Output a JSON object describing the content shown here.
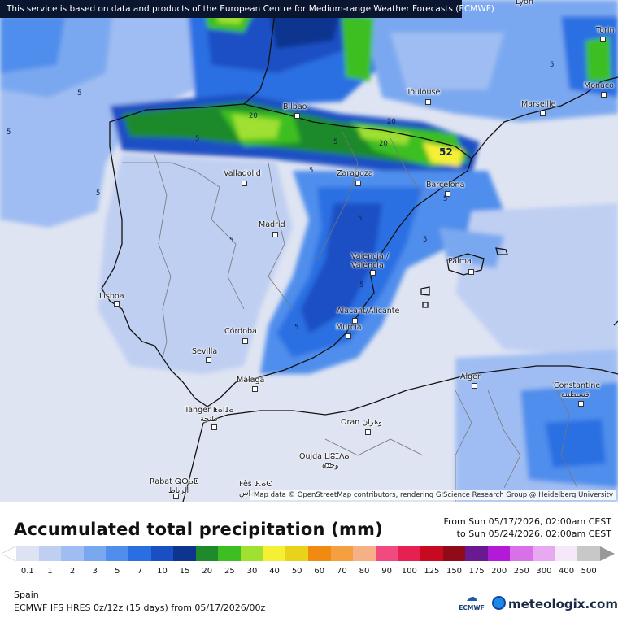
{
  "banner": {
    "text": "This service is based on data and products of the European Centre for Medium-range Weather Forecasts (ECMWF)"
  },
  "map": {
    "attribution": "Map data © OpenStreetMap contributors, rendering GIScience Research Group @ Heidelberg University",
    "cities": [
      {
        "name": "Lyon",
        "key": "lyon"
      },
      {
        "name": "Torin",
        "key": "torino"
      },
      {
        "name": "Monaco",
        "key": "monaco"
      },
      {
        "name": "Toulouse",
        "key": "toulouse"
      },
      {
        "name": "Marseille",
        "key": "marseille"
      },
      {
        "name": "Bilbao",
        "key": "bilbao"
      },
      {
        "name": "Valladolid",
        "key": "valladolid"
      },
      {
        "name": "Zaragoza",
        "key": "zaragoza"
      },
      {
        "name": "Barcelona",
        "key": "barcelona"
      },
      {
        "name": "Madrid",
        "key": "madrid"
      },
      {
        "name": "Valencia / València",
        "key": "valencia"
      },
      {
        "name": "Palma",
        "key": "palma"
      },
      {
        "name": "Lisboa",
        "key": "lisboa"
      },
      {
        "name": "Alacant/Alicante",
        "key": "alicante"
      },
      {
        "name": "Córdoba",
        "key": "cordoba"
      },
      {
        "name": "Murcia",
        "key": "murcia"
      },
      {
        "name": "Sevilla",
        "key": "sevilla"
      },
      {
        "name": "Málaga",
        "key": "malaga"
      },
      {
        "name": "Alger",
        "key": "alger"
      },
      {
        "name": "Constantine",
        "key": "constantine"
      },
      {
        "name": "قسنطينة",
        "key": "constantine_ar"
      },
      {
        "name": "Tanger ⵟⴰⵏⵊⴰ",
        "key": "tanger"
      },
      {
        "name": "طنجة",
        "key": "tanger_ar"
      },
      {
        "name": "Oran وهران",
        "key": "oran"
      },
      {
        "name": "Oujda ⵡⵓⵊⴷⴰ",
        "key": "oujda"
      },
      {
        "name": "وجدة",
        "key": "oujda_ar"
      },
      {
        "name": "Rabat ⵕⴱⴰⵟ",
        "key": "rabat"
      },
      {
        "name": "الرباط",
        "key": "rabat_ar"
      },
      {
        "name": "Fès ⴼⴰⵙ",
        "key": "fes"
      },
      {
        "name": "فاس",
        "key": "fes_ar"
      }
    ],
    "contour_labels": [
      "5",
      "5",
      "5",
      "5",
      "5",
      "5",
      "5",
      "5",
      "5",
      "5",
      "5",
      "5",
      "5",
      "5",
      "20",
      "20",
      "20",
      "52"
    ]
  },
  "legend": {
    "title": "Accumulated total precipitation (mm)",
    "period_from": "From Sun 05/17/2026, 02:00am CEST",
    "period_to": "to Sun 05/24/2026, 02:00am CEST",
    "colorbar": [
      {
        "label": "0.1",
        "color": "#dde3f3"
      },
      {
        "label": "1",
        "color": "#bfcff2"
      },
      {
        "label": "2",
        "color": "#9fbdf2"
      },
      {
        "label": "3",
        "color": "#7aa8f0"
      },
      {
        "label": "5",
        "color": "#4f8eec"
      },
      {
        "label": "7",
        "color": "#2a6fe2"
      },
      {
        "label": "10",
        "color": "#1a4fc4"
      },
      {
        "label": "15",
        "color": "#0d3590"
      },
      {
        "label": "20",
        "color": "#1f8a2a"
      },
      {
        "label": "25",
        "color": "#3dbf22"
      },
      {
        "label": "30",
        "color": "#9fe030"
      },
      {
        "label": "40",
        "color": "#f5f034"
      },
      {
        "label": "50",
        "color": "#e8d21a"
      },
      {
        "label": "60",
        "color": "#f08a10"
      },
      {
        "label": "70",
        "color": "#f5a040"
      },
      {
        "label": "80",
        "color": "#f5b085"
      },
      {
        "label": "90",
        "color": "#f04a80"
      },
      {
        "label": "100",
        "color": "#e62050"
      },
      {
        "label": "125",
        "color": "#c80a20"
      },
      {
        "label": "150",
        "color": "#900a18"
      },
      {
        "label": "175",
        "color": "#6a1a90"
      },
      {
        "label": "200",
        "color": "#b21ad8"
      },
      {
        "label": "250",
        "color": "#d870e8"
      },
      {
        "label": "300",
        "color": "#e8a8f2"
      },
      {
        "label": "400",
        "color": "#f5e8f8"
      },
      {
        "label": "500",
        "color": "#c8c8c8"
      }
    ],
    "overflow_color": "#999999",
    "underflow_color": "#ffffff",
    "region": "Spain",
    "model": "ECMWF IFS HRES 0z/12z (15 days) from 05/17/2026/00z",
    "ecmwf_label": "ECMWF",
    "brand": "meteologix.com"
  }
}
